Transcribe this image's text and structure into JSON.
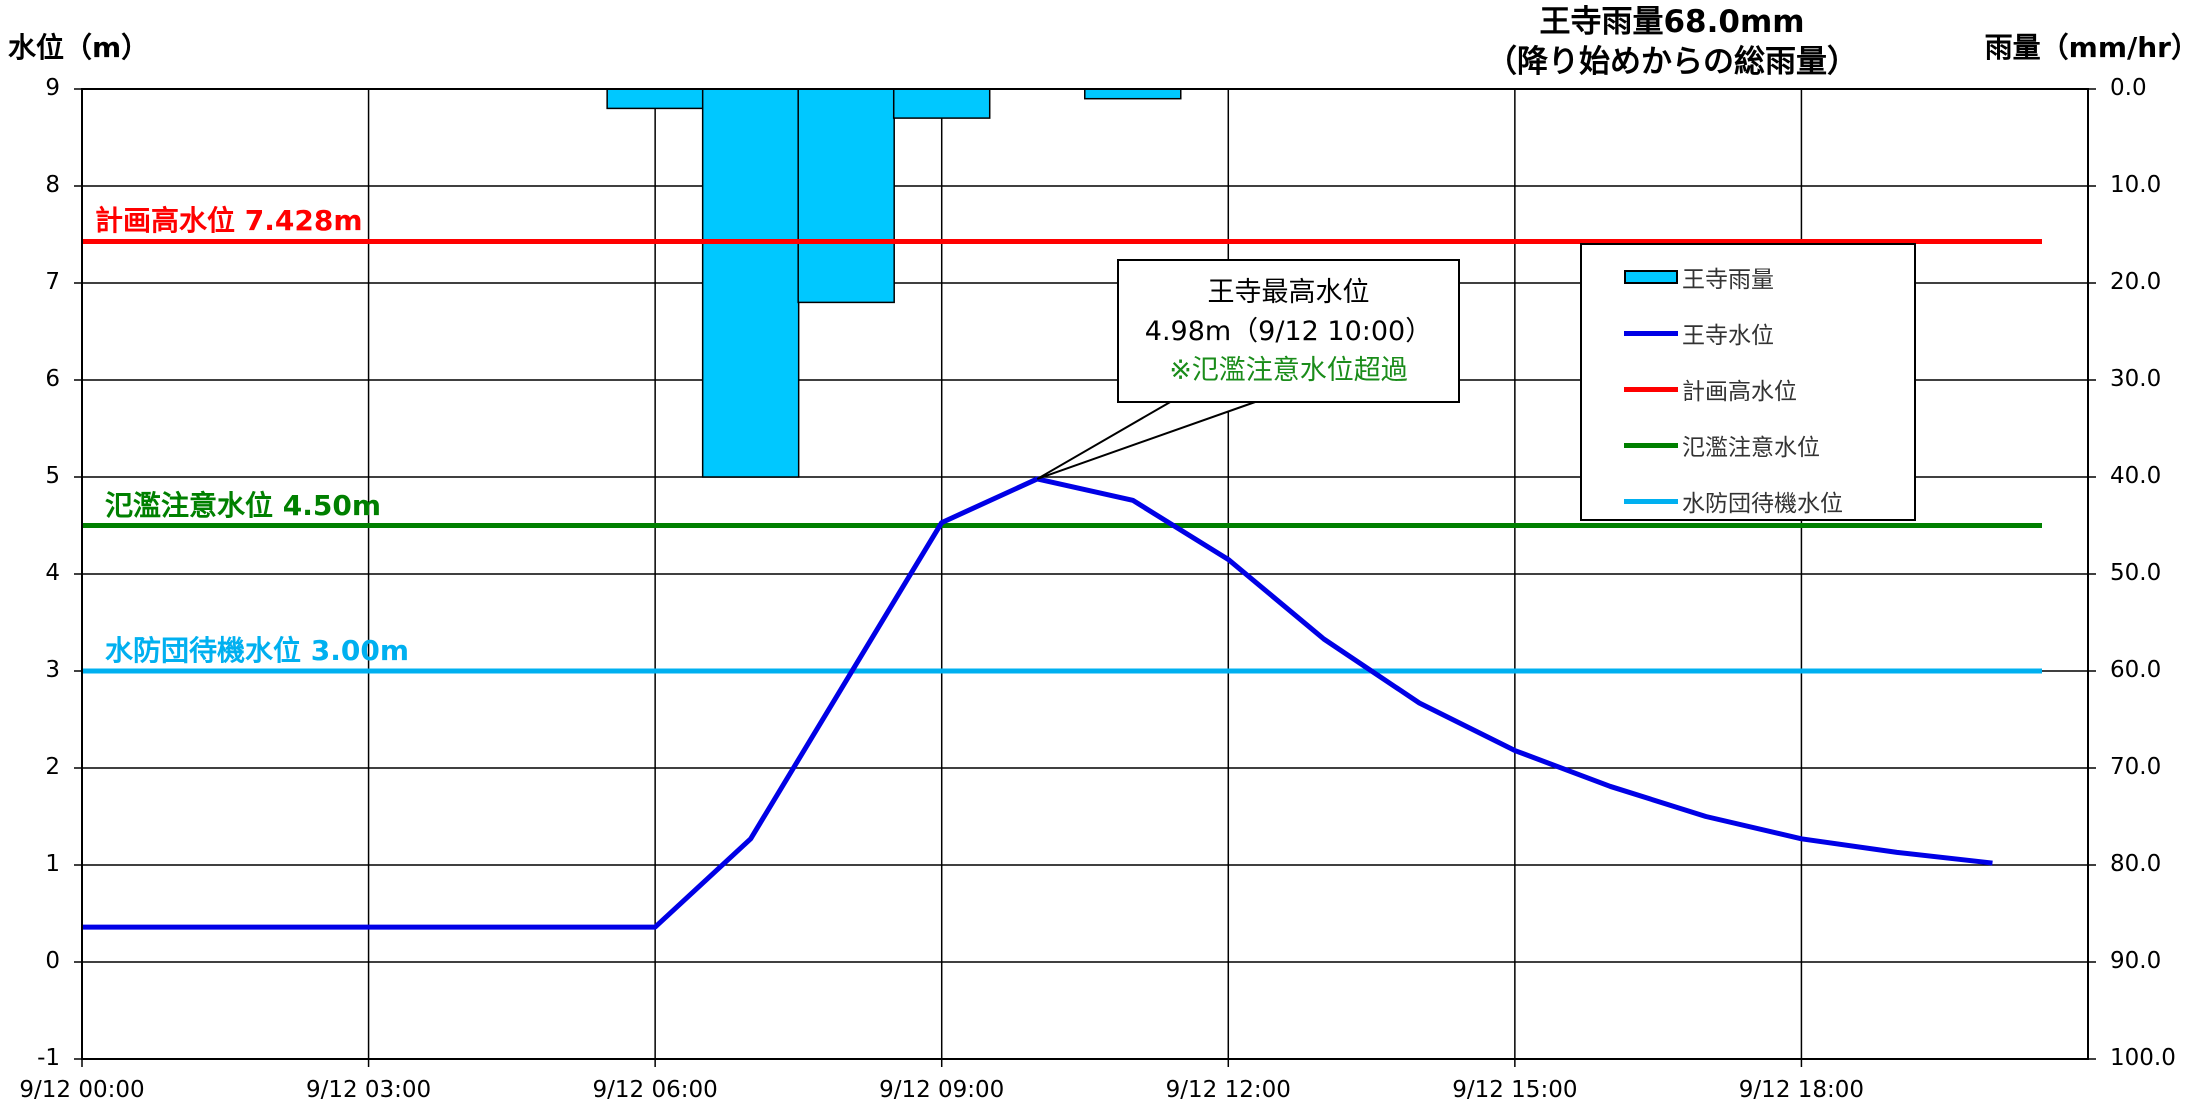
{
  "chart_data": {
    "type": "bar+line",
    "rain_total_title": [
      "王寺雨量68.0mm",
      "（降り始めからの総雨量）"
    ],
    "left_axis": {
      "label": "水位（m）",
      "range": [
        -1,
        9
      ],
      "ticks": [
        "-1",
        "0",
        "1",
        "2",
        "3",
        "4",
        "5",
        "6",
        "7",
        "8",
        "9"
      ]
    },
    "right_axis": {
      "label": "雨量（mm/hr）",
      "range": [
        0,
        100
      ],
      "reversed": true,
      "ticks": [
        "0.0",
        "10.0",
        "20.0",
        "30.0",
        "40.0",
        "50.0",
        "60.0",
        "70.0",
        "80.0",
        "90.0",
        "100.0"
      ]
    },
    "x_axis": {
      "range_hours": [
        0,
        21
      ],
      "ticks": [
        {
          "h": 0,
          "label": "9/12 00:00"
        },
        {
          "h": 3,
          "label": "9/12 03:00"
        },
        {
          "h": 6,
          "label": "9/12 06:00"
        },
        {
          "h": 9,
          "label": "9/12 09:00"
        },
        {
          "h": 12,
          "label": "9/12 12:00"
        },
        {
          "h": 15,
          "label": "9/12 15:00"
        },
        {
          "h": 18,
          "label": "9/12 18:00"
        }
      ]
    },
    "grid": true,
    "rain_bars": [
      {
        "h": 6,
        "value": 2.0
      },
      {
        "h": 7,
        "value": 40.0
      },
      {
        "h": 8,
        "value": 22.0
      },
      {
        "h": 9,
        "value": 3.0
      },
      {
        "h": 11,
        "value": 1.0
      }
    ],
    "water_level": {
      "points": [
        [
          0,
          0.36
        ],
        [
          6,
          0.36
        ],
        [
          7,
          1.27
        ],
        [
          9,
          4.53
        ],
        [
          10,
          4.98
        ],
        [
          11,
          4.76
        ],
        [
          12,
          4.15
        ],
        [
          13,
          3.33
        ],
        [
          14,
          2.67
        ],
        [
          15,
          2.18
        ],
        [
          16,
          1.81
        ],
        [
          17,
          1.5
        ],
        [
          18,
          1.27
        ],
        [
          19,
          1.13
        ],
        [
          20,
          1.02
        ]
      ]
    },
    "reference_lines": [
      {
        "key": "plan",
        "label": "計画高水位  7.428m",
        "value": 7.428,
        "color": "#ff0000"
      },
      {
        "key": "flood",
        "label": "氾濫注意水位  4.50m",
        "value": 4.5,
        "color": "#008000"
      },
      {
        "key": "standby",
        "label": "水防団待機水位  3.00m",
        "value": 3.0,
        "color": "#00b0f0"
      }
    ],
    "series_colors": {
      "rain": "#00c8ff",
      "water_level": "#0000e6"
    },
    "annotation": {
      "lines": [
        "王寺最高水位",
        "4.98m（9/12  10:00）",
        "※氾濫注意水位超過"
      ],
      "point_hour": 10,
      "point_value": 4.98
    },
    "legend": {
      "position": "right",
      "items": [
        {
          "label": "王寺雨量",
          "kind": "bar",
          "color": "#00c8ff"
        },
        {
          "label": "王寺水位",
          "kind": "line",
          "color": "#0000e6"
        },
        {
          "label": "計画高水位",
          "kind": "line",
          "color": "#ff0000"
        },
        {
          "label": "氾濫注意水位",
          "kind": "line",
          "color": "#008000"
        },
        {
          "label": "水防団待機水位",
          "kind": "line",
          "color": "#00b0f0"
        }
      ]
    }
  }
}
